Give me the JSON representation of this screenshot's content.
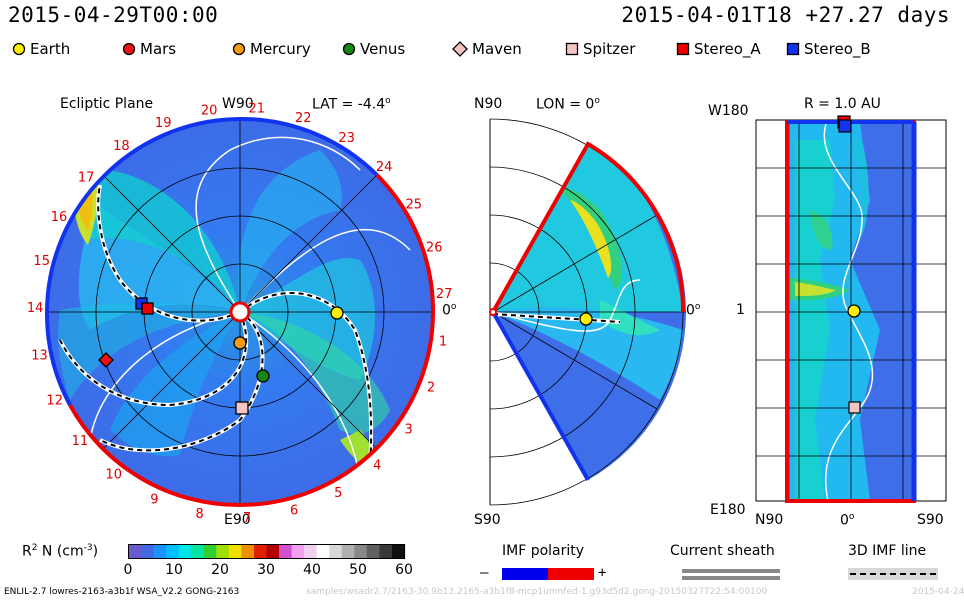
{
  "header": {
    "left_time": "2015-04-29T00:00",
    "right_time": "2015-04-01T18 +27.27 days"
  },
  "legend": [
    {
      "label": "Earth",
      "color": "#ffee00",
      "shape": "circle"
    },
    {
      "label": "Mars",
      "color": "#ee1111",
      "shape": "circle"
    },
    {
      "label": "Mercury",
      "color": "#f39c12",
      "shape": "circle"
    },
    {
      "label": "Venus",
      "color": "#118811",
      "shape": "circle"
    },
    {
      "label": "Maven",
      "color": "#f4c4c4",
      "shape": "diamond"
    },
    {
      "label": "Spitzer",
      "color": "#f4c4c4",
      "shape": "square"
    },
    {
      "label": "Stereo_A",
      "color": "#ee0000",
      "shape": "square"
    },
    {
      "label": "Stereo_B",
      "color": "#1133ee",
      "shape": "square"
    }
  ],
  "panels": {
    "ecliptic": {
      "title": "Ecliptic Plane",
      "top_label": "W90",
      "lat_label": "LAT = -4.4",
      "lat_sup": "o",
      "right_label": "0",
      "right_sup": "o",
      "bottom_label": "E90",
      "carrington": [
        "1",
        "2",
        "3",
        "4",
        "5",
        "6",
        "7",
        "8",
        "9",
        "10",
        "11",
        "12",
        "13",
        "14",
        "15",
        "16",
        "17",
        "18",
        "19",
        "20",
        "21",
        "22",
        "23",
        "24",
        "25",
        "26",
        "27"
      ]
    },
    "meridional": {
      "top_label": "N90",
      "lon_label": "LON = 0",
      "lon_sup": "o",
      "right_label": "0",
      "right_sup": "o",
      "bottom_label": "S90"
    },
    "radial": {
      "title": "R = 1.0 AU",
      "y_top": "W180",
      "y_mid": "1",
      "y_bottom": "E180",
      "x_left": "N90",
      "x_mid": "0",
      "x_mid_sup": "o",
      "x_right": "S90"
    }
  },
  "colorbar": {
    "label": "R",
    "label_sup": "2",
    "label_rest": " N (cm",
    "label_exp": "-3",
    "label_end": ")",
    "ticks": [
      "0",
      "10",
      "20",
      "30",
      "40",
      "50",
      "60"
    ],
    "colors": [
      "#6a5acd",
      "#4169e1",
      "#1e90ff",
      "#00bfff",
      "#00e5e5",
      "#00e5a0",
      "#30d030",
      "#a0e000",
      "#f0e000",
      "#f09000",
      "#e02000",
      "#b00000",
      "#d050d0",
      "#f0a0f0",
      "#f0d0f0",
      "#ffffff",
      "#d8d8d8",
      "#b0b0b0",
      "#888888",
      "#606060",
      "#383838",
      "#101010"
    ]
  },
  "imf_polarity": {
    "title": "IMF polarity",
    "minus": "–",
    "plus": "+",
    "neg_color": "#0000ee",
    "pos_color": "#ee0000"
  },
  "current_sheath": {
    "title": "Current sheath"
  },
  "imf_line": {
    "title": "3D IMF line"
  },
  "footer": {
    "left": "ENLIL-2.7 lowres-2163-a3b1f WSA_V2.2 GONG-2163",
    "middle": "samples/wsadr2.7/2163-30.9b13.2165-a3b1f8-mcp1umnfed-1.g93d5d2.gong-20150327T22:54:00100",
    "right": "2015-04-24"
  }
}
